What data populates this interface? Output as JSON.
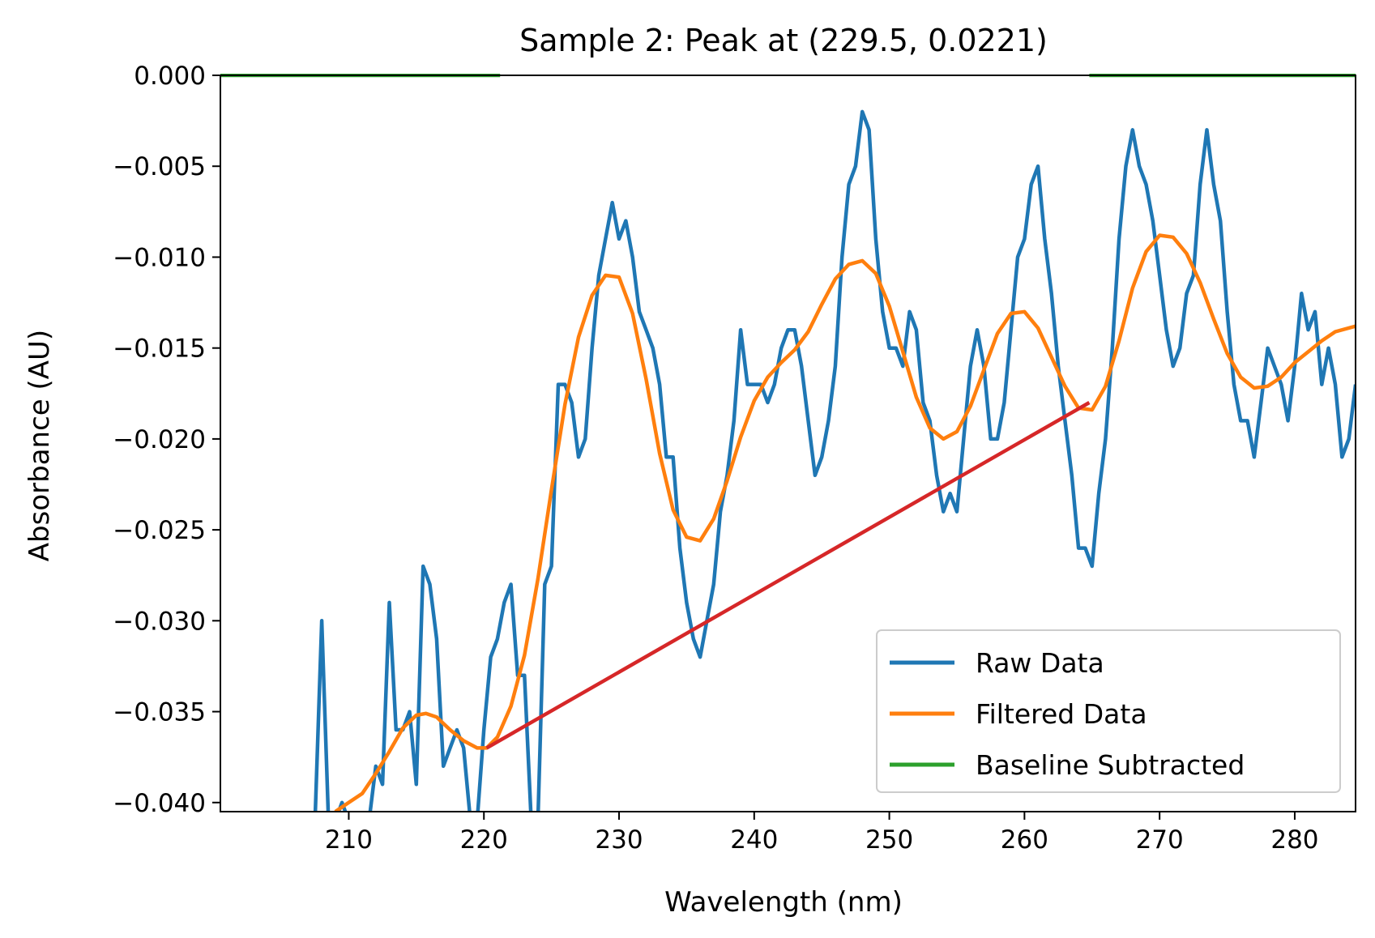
{
  "chart_data": {
    "type": "line",
    "title": "Sample 2: Peak at (229.5, 0.0221)",
    "xlabel": "Wavelength (nm)",
    "ylabel": "Absorbance (AU)",
    "xlim": [
      200.5,
      284.5
    ],
    "ylim": [
      -0.0405,
      0.0
    ],
    "xticks": [
      210,
      220,
      230,
      240,
      250,
      260,
      270,
      280
    ],
    "yticks": [
      0.0,
      -0.005,
      -0.01,
      -0.015,
      -0.02,
      -0.025,
      -0.03,
      -0.035,
      -0.04
    ],
    "ytick_labels": [
      "0.000",
      "−0.005",
      "−0.010",
      "−0.015",
      "−0.020",
      "−0.025",
      "−0.030",
      "−0.035",
      "−0.040"
    ],
    "xtick_labels": [
      "210",
      "220",
      "230",
      "240",
      "250",
      "260",
      "270",
      "280"
    ],
    "grid": false,
    "legend_position": "lower-right",
    "series": [
      {
        "name": "Raw Data",
        "color": "#1f77b4",
        "x": [
          207,
          207.5,
          208,
          208.5,
          209,
          209.5,
          210,
          210.5,
          211,
          211.5,
          212,
          212.5,
          213,
          213.5,
          214,
          214.5,
          215,
          215.5,
          216,
          216.5,
          217,
          217.5,
          218,
          218.5,
          219,
          219.5,
          220,
          220.5,
          221,
          221.5,
          222,
          222.5,
          223,
          223.5,
          224,
          224.5,
          225,
          225.5,
          226,
          226.5,
          227,
          227.5,
          228,
          228.5,
          229,
          229.5,
          230,
          230.5,
          231,
          231.5,
          232,
          232.5,
          233,
          233.5,
          234,
          234.5,
          235,
          235.5,
          236,
          236.5,
          237,
          237.5,
          238,
          238.5,
          239,
          239.5,
          240,
          240.5,
          241,
          241.5,
          242,
          242.5,
          243,
          243.5,
          244,
          244.5,
          245,
          245.5,
          246,
          246.5,
          247,
          247.5,
          248,
          248.5,
          249,
          249.5,
          250,
          250.5,
          251,
          251.5,
          252,
          252.5,
          253,
          253.5,
          254,
          254.5,
          255,
          255.5,
          256,
          256.5,
          257,
          257.5,
          258,
          258.5,
          259,
          259.5,
          260,
          260.5,
          261,
          261.5,
          262,
          262.5,
          263,
          263.5,
          264,
          264.5,
          265,
          265.5,
          266,
          266.5,
          267,
          267.5,
          268,
          268.5,
          269,
          269.5,
          270,
          270.5,
          271,
          271.5,
          272,
          272.5,
          273,
          273.5,
          274,
          274.5,
          275,
          275.5,
          276,
          276.5,
          277,
          277.5,
          278,
          278.5,
          279,
          279.5,
          280,
          280.5,
          281,
          281.5,
          282,
          282.5,
          283,
          283.5,
          284,
          284.5
        ],
        "y": [
          -0.041,
          -0.041,
          -0.03,
          -0.041,
          -0.041,
          -0.04,
          -0.041,
          -0.041,
          -0.041,
          -0.041,
          -0.038,
          -0.039,
          -0.029,
          -0.036,
          -0.036,
          -0.035,
          -0.039,
          -0.027,
          -0.028,
          -0.031,
          -0.038,
          -0.037,
          -0.036,
          -0.037,
          -0.041,
          -0.041,
          -0.036,
          -0.032,
          -0.031,
          -0.029,
          -0.028,
          -0.033,
          -0.033,
          -0.041,
          -0.041,
          -0.028,
          -0.027,
          -0.017,
          -0.017,
          -0.018,
          -0.021,
          -0.02,
          -0.015,
          -0.011,
          -0.009,
          -0.007,
          -0.009,
          -0.008,
          -0.01,
          -0.013,
          -0.014,
          -0.015,
          -0.017,
          -0.021,
          -0.021,
          -0.026,
          -0.029,
          -0.031,
          -0.032,
          -0.03,
          -0.028,
          -0.024,
          -0.022,
          -0.019,
          -0.014,
          -0.017,
          -0.017,
          -0.017,
          -0.018,
          -0.017,
          -0.015,
          -0.014,
          -0.014,
          -0.016,
          -0.019,
          -0.022,
          -0.021,
          -0.019,
          -0.016,
          -0.01,
          -0.006,
          -0.005,
          -0.002,
          -0.003,
          -0.009,
          -0.013,
          -0.015,
          -0.015,
          -0.016,
          -0.013,
          -0.014,
          -0.018,
          -0.019,
          -0.022,
          -0.024,
          -0.023,
          -0.024,
          -0.02,
          -0.016,
          -0.014,
          -0.016,
          -0.02,
          -0.02,
          -0.018,
          -0.014,
          -0.01,
          -0.009,
          -0.006,
          -0.005,
          -0.009,
          -0.012,
          -0.016,
          -0.019,
          -0.022,
          -0.026,
          -0.026,
          -0.027,
          -0.023,
          -0.02,
          -0.015,
          -0.009,
          -0.005,
          -0.003,
          -0.005,
          -0.006,
          -0.008,
          -0.011,
          -0.014,
          -0.016,
          -0.015,
          -0.012,
          -0.011,
          -0.006,
          -0.003,
          -0.006,
          -0.008,
          -0.013,
          -0.017,
          -0.019,
          -0.019,
          -0.021,
          -0.018,
          -0.015,
          -0.016,
          -0.017,
          -0.019,
          -0.016,
          -0.012,
          -0.014,
          -0.013,
          -0.017,
          -0.015,
          -0.017,
          -0.021,
          -0.02,
          -0.017
        ]
      },
      {
        "name": "Filtered Data",
        "color": "#ff7f0e",
        "x": [
          209,
          210,
          211,
          212,
          213,
          214,
          215,
          215.7,
          216.5,
          217.5,
          218.5,
          219.5,
          220.2,
          221,
          222,
          223,
          224,
          225,
          226,
          227,
          228,
          229,
          230,
          231,
          232,
          233,
          234,
          235,
          236,
          237,
          238,
          239,
          240,
          241,
          242,
          243,
          244,
          245,
          246,
          247,
          248,
          249,
          250,
          251,
          252,
          253,
          254,
          255,
          256,
          257,
          258,
          259,
          260,
          261,
          262,
          263,
          264,
          265,
          266,
          267,
          268,
          269,
          270,
          271,
          272,
          273,
          274,
          275,
          276,
          277,
          278,
          279,
          280,
          281,
          282,
          283,
          284.5
        ],
        "y": [
          -0.0405,
          -0.04,
          -0.0395,
          -0.0384,
          -0.0372,
          -0.0359,
          -0.0352,
          -0.0351,
          -0.0353,
          -0.036,
          -0.0366,
          -0.037,
          -0.037,
          -0.0364,
          -0.0347,
          -0.0319,
          -0.0277,
          -0.0228,
          -0.0181,
          -0.0144,
          -0.0121,
          -0.011,
          -0.0111,
          -0.0131,
          -0.0167,
          -0.0208,
          -0.0239,
          -0.0254,
          -0.0256,
          -0.0244,
          -0.0223,
          -0.0199,
          -0.0179,
          -0.0166,
          -0.0158,
          -0.0151,
          -0.0141,
          -0.0126,
          -0.0112,
          -0.0104,
          -0.0102,
          -0.0109,
          -0.0127,
          -0.0152,
          -0.0177,
          -0.0194,
          -0.02,
          -0.0196,
          -0.0182,
          -0.0162,
          -0.0142,
          -0.0131,
          -0.013,
          -0.0139,
          -0.0155,
          -0.0171,
          -0.0183,
          -0.0184,
          -0.0171,
          -0.0146,
          -0.0117,
          -0.0097,
          -0.0088,
          -0.0089,
          -0.0098,
          -0.0114,
          -0.0134,
          -0.0153,
          -0.0166,
          -0.0172,
          -0.0171,
          -0.0166,
          -0.0158,
          -0.0152,
          -0.0146,
          -0.0141,
          -0.0138
        ]
      },
      {
        "name": "Baseline Subtracted",
        "color": "#2ca02c",
        "segments": [
          {
            "x": [
              200.5,
              221.2
            ],
            "y": [
              0.0,
              0.0
            ]
          },
          {
            "x": [
              264.8,
              284.5
            ],
            "y": [
              0.0,
              0.0
            ]
          }
        ]
      },
      {
        "color": "#d62728",
        "x": [
          220.2,
          264.8
        ],
        "y": [
          -0.037,
          -0.018
        ]
      }
    ],
    "legend": [
      "Raw Data",
      "Filtered Data",
      "Baseline Subtracted"
    ]
  }
}
